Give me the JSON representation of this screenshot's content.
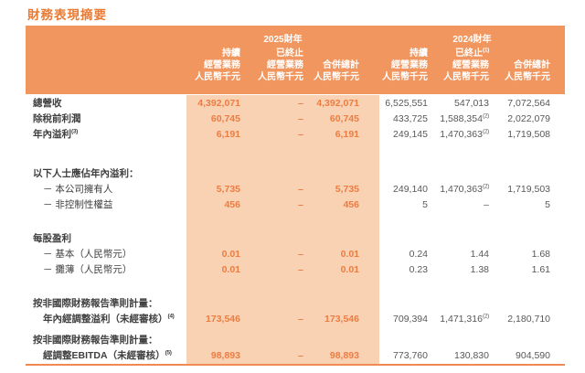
{
  "title": "財務表現摘要",
  "colors": {
    "title_text": "#EA7A33",
    "header_bg": "#F0965E",
    "header_text": "#FFFFFF",
    "highlight_bg": "#F9D2B3",
    "accent_value_text": "#ED7C42",
    "label_text": "#3F3F3F",
    "value_text": "#58585A",
    "bottom_rule": "#F18A52"
  },
  "table": {
    "year_groups": [
      {
        "label": "2025財年"
      },
      {
        "label": "2024財年"
      }
    ],
    "columns": [
      {
        "line1": "持續",
        "sup": "",
        "line2": "經營業務",
        "line3": "人民幣千元"
      },
      {
        "line1": "已終止",
        "sup": "",
        "line2": "經營業務",
        "line3": "人民幣千元"
      },
      {
        "line1": "",
        "sup": "",
        "line2": "合併總計",
        "line3": "人民幣千元"
      },
      {
        "line1": "持續",
        "sup": "",
        "line2": "經營業務",
        "line3": "人民幣千元"
      },
      {
        "line1": "已終止",
        "sup": "(1)",
        "line2": "經營業務",
        "line3": "人民幣千元"
      },
      {
        "line1": "",
        "sup": "",
        "line2": "合併總計",
        "line3": "人民幣千元"
      }
    ],
    "rows": [
      {
        "type": "data",
        "label": "總營收",
        "cells": [
          {
            "v": "4,392,071"
          },
          {
            "v": "–"
          },
          {
            "v": "4,392,071"
          },
          {
            "v": "6,525,551"
          },
          {
            "v": "547,013"
          },
          {
            "v": "7,072,564"
          }
        ]
      },
      {
        "type": "data",
        "label": "除稅前利潤",
        "cells": [
          {
            "v": "60,745"
          },
          {
            "v": "–"
          },
          {
            "v": "60,745"
          },
          {
            "v": "433,725"
          },
          {
            "v": "1,588,354",
            "s": "(2)"
          },
          {
            "v": "2,022,079"
          }
        ]
      },
      {
        "type": "data",
        "label": "年內溢利",
        "label_sup": "(3)",
        "cells": [
          {
            "v": "6,191"
          },
          {
            "v": "–"
          },
          {
            "v": "6,191"
          },
          {
            "v": "249,145"
          },
          {
            "v": "1,470,363",
            "s": "(2)"
          },
          {
            "v": "1,719,508"
          }
        ]
      },
      {
        "type": "spacer",
        "height": 26
      },
      {
        "type": "section",
        "label": "以下人士應佔年內溢利："
      },
      {
        "type": "sub",
        "label": "－ 本公司擁有人",
        "cells": [
          {
            "v": "5,735"
          },
          {
            "v": "–"
          },
          {
            "v": "5,735"
          },
          {
            "v": "249,140"
          },
          {
            "v": "1,470,363",
            "s": "(2)"
          },
          {
            "v": "1,719,503"
          }
        ]
      },
      {
        "type": "sub",
        "label": "－ 非控制性權益",
        "cells": [
          {
            "v": "456"
          },
          {
            "v": "–"
          },
          {
            "v": "456"
          },
          {
            "v": "5"
          },
          {
            "v": "–"
          },
          {
            "v": "5"
          }
        ]
      },
      {
        "type": "spacer",
        "height": 20
      },
      {
        "type": "section",
        "label": "每股盈利"
      },
      {
        "type": "sub",
        "label": "－ 基本（人民幣元）",
        "cells": [
          {
            "v": "0.01"
          },
          {
            "v": "–"
          },
          {
            "v": "0.01"
          },
          {
            "v": "0.24"
          },
          {
            "v": "1.44"
          },
          {
            "v": "1.68"
          }
        ]
      },
      {
        "type": "sub",
        "label": "－ 攤薄（人民幣元）",
        "cells": [
          {
            "v": "0.01"
          },
          {
            "v": "–"
          },
          {
            "v": "0.01"
          },
          {
            "v": "0.23"
          },
          {
            "v": "1.38"
          },
          {
            "v": "1.61"
          }
        ]
      },
      {
        "type": "spacer",
        "height": 20
      },
      {
        "type": "section",
        "label": "按非國際財務報告準則計量："
      },
      {
        "type": "data",
        "indent": true,
        "label": "年內經調整溢利（未經審核）",
        "label_sup": "(4)",
        "cells": [
          {
            "v": "173,546"
          },
          {
            "v": "–"
          },
          {
            "v": "173,546"
          },
          {
            "v": "709,394"
          },
          {
            "v": "1,471,316",
            "s": "(2)"
          },
          {
            "v": "2,180,710"
          }
        ]
      },
      {
        "type": "spacer",
        "height": 6
      },
      {
        "type": "section",
        "label": "按非國際財務報告準則計量："
      },
      {
        "type": "data",
        "indent": true,
        "label": "經調整EBITDA（未經審核）",
        "label_sup": "(5)",
        "cells": [
          {
            "v": "98,893"
          },
          {
            "v": "–"
          },
          {
            "v": "98,893"
          },
          {
            "v": "773,760"
          },
          {
            "v": "130,830"
          },
          {
            "v": "904,590"
          }
        ]
      }
    ]
  }
}
